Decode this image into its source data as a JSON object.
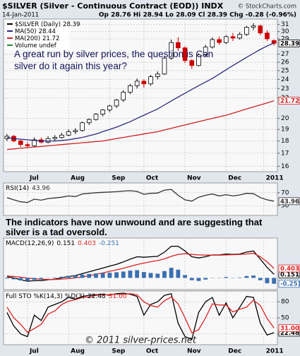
{
  "header": {
    "title": "$SILVER (Silver - Continuous Contract (EOD)) INDX",
    "source": "© StockCharts.com",
    "date": "14-Jan-2011",
    "quote": "Op 28.76 Hi 28.94 Lo 28.09 Cl 28.39 Chg -0.28 (-0.96%)"
  },
  "comment": "The indicators have now unwound and are suggesting that silver is a tad oversold.",
  "chart_data": [
    {
      "type": "candlestick",
      "name": "$SILVER (Daily)",
      "annotation": "A great run by silver prices, the question is Can silver do it again this year?",
      "volume_label": "Volume undef",
      "log": true,
      "grid": true,
      "up_color": "#000000",
      "down_color": "#cc0000",
      "axis_label": true,
      "ylim": [
        15.6,
        31.8
      ],
      "yticks": [
        16,
        17,
        18,
        19,
        20,
        22,
        23,
        24,
        25,
        26,
        27,
        29,
        30,
        31
      ],
      "xlim": [
        -0.5,
        39.5
      ],
      "xticks": [
        {
          "value": 3,
          "label": "Jul"
        },
        {
          "value": 9,
          "label": "Aug"
        },
        {
          "value": 15,
          "label": "Sep"
        },
        {
          "value": 20,
          "label": "Oct"
        },
        {
          "value": 26,
          "label": "Nov"
        },
        {
          "value": 32,
          "label": "Dec"
        },
        {
          "value": 37.5,
          "label": "2011"
        }
      ],
      "ohlc": [
        [
          18.2,
          18.6,
          18.0,
          18.4
        ],
        [
          18.4,
          18.5,
          17.9,
          18.0
        ],
        [
          18.0,
          18.1,
          17.5,
          17.7
        ],
        [
          17.7,
          17.9,
          17.4,
          17.6
        ],
        [
          17.6,
          18.3,
          17.5,
          18.1
        ],
        [
          18.1,
          18.3,
          17.8,
          17.9
        ],
        [
          17.9,
          18.4,
          17.8,
          18.2
        ],
        [
          18.2,
          18.5,
          18.0,
          18.3
        ],
        [
          18.3,
          18.7,
          18.2,
          18.5
        ],
        [
          18.5,
          19.0,
          18.4,
          18.8
        ],
        [
          18.8,
          19.1,
          18.6,
          18.9
        ],
        [
          18.9,
          19.7,
          18.8,
          19.6
        ],
        [
          19.6,
          20.0,
          19.4,
          19.9
        ],
        [
          19.9,
          20.5,
          19.8,
          20.4
        ],
        [
          20.4,
          20.9,
          20.2,
          20.8
        ],
        [
          20.8,
          21.3,
          20.6,
          21.2
        ],
        [
          21.2,
          21.9,
          21.0,
          21.8
        ],
        [
          21.8,
          22.8,
          21.6,
          22.6
        ],
        [
          22.6,
          23.5,
          22.4,
          23.3
        ],
        [
          23.3,
          24.1,
          23.0,
          23.8
        ],
        [
          23.8,
          24.0,
          23.1,
          23.5
        ],
        [
          23.5,
          24.5,
          23.3,
          24.3
        ],
        [
          24.3,
          24.9,
          24.0,
          24.6
        ],
        [
          24.6,
          26.8,
          24.5,
          26.5
        ],
        [
          26.5,
          28.9,
          26.3,
          28.5
        ],
        [
          28.5,
          29.2,
          27.4,
          27.8
        ],
        [
          27.8,
          28.0,
          25.9,
          26.2
        ],
        [
          26.2,
          26.4,
          25.2,
          25.6
        ],
        [
          25.6,
          27.1,
          25.5,
          26.9
        ],
        [
          26.9,
          28.2,
          26.7,
          27.9
        ],
        [
          27.9,
          29.2,
          27.7,
          28.9
        ],
        [
          28.9,
          29.3,
          28.2,
          28.5
        ],
        [
          28.5,
          29.5,
          28.3,
          29.3
        ],
        [
          29.3,
          29.8,
          28.7,
          29.1
        ],
        [
          29.1,
          29.9,
          28.9,
          29.6
        ],
        [
          29.6,
          30.8,
          29.4,
          30.6
        ],
        [
          30.6,
          31.2,
          30.2,
          30.8
        ],
        [
          30.8,
          31.0,
          29.5,
          29.8
        ],
        [
          29.8,
          30.2,
          28.7,
          29.0
        ],
        [
          28.76,
          28.94,
          28.09,
          28.39
        ]
      ],
      "series": [
        {
          "name": "MA(50)",
          "color": "#2a2a80",
          "values": [
            18.3,
            18.2,
            18.15,
            18.1,
            18.05,
            18.0,
            18.0,
            18.0,
            18.05,
            18.1,
            18.2,
            18.3,
            18.45,
            18.6,
            18.8,
            19.0,
            19.2,
            19.45,
            19.7,
            20.0,
            20.3,
            20.6,
            20.9,
            21.3,
            21.7,
            22.1,
            22.5,
            22.9,
            23.3,
            23.7,
            24.1,
            24.6,
            25.1,
            25.6,
            26.1,
            26.6,
            27.1,
            27.6,
            28.05,
            28.44
          ]
        },
        {
          "name": "MA(200)",
          "color": "#cc2222",
          "axis_label": true,
          "values": [
            17.3,
            17.35,
            17.4,
            17.45,
            17.5,
            17.55,
            17.6,
            17.65,
            17.7,
            17.75,
            17.8,
            17.85,
            17.9,
            17.95,
            18.0,
            18.1,
            18.2,
            18.3,
            18.4,
            18.5,
            18.6,
            18.7,
            18.8,
            18.95,
            19.1,
            19.25,
            19.4,
            19.55,
            19.7,
            19.85,
            20.0,
            20.15,
            20.3,
            20.5,
            20.7,
            20.9,
            21.1,
            21.3,
            21.5,
            21.72
          ]
        }
      ]
    },
    {
      "type": "line",
      "name": "RSI(14)",
      "grid": true,
      "ylim": [
        0,
        100
      ],
      "yticks": [
        30,
        70
      ],
      "xlim": [
        -0.5,
        39.5
      ],
      "series": [
        {
          "color": "#333333",
          "axis_label": true,
          "values": [
            55,
            48,
            42,
            40,
            50,
            47,
            52,
            54,
            56,
            60,
            58,
            66,
            68,
            70,
            71,
            72,
            73,
            75,
            76,
            74,
            65,
            68,
            69,
            78,
            80,
            62,
            48,
            44,
            56,
            62,
            66,
            60,
            64,
            60,
            63,
            68,
            67,
            55,
            48,
            43.96
          ]
        }
      ]
    },
    {
      "type": "line",
      "name": "MACD(12,26,9)",
      "grid": true,
      "ylim": [
        -0.5,
        1.7
      ],
      "xlim": [
        -0.5,
        39.5
      ],
      "series": [
        {
          "color": "#000000",
          "axis_label": true,
          "values": [
            0.05,
            0.0,
            -0.08,
            -0.14,
            -0.12,
            -0.12,
            -0.08,
            -0.05,
            0.0,
            0.06,
            0.1,
            0.18,
            0.26,
            0.34,
            0.42,
            0.5,
            0.58,
            0.68,
            0.8,
            0.9,
            0.88,
            0.9,
            0.92,
            1.1,
            1.35,
            1.35,
            1.15,
            0.9,
            0.85,
            0.9,
            0.98,
            0.98,
            1.02,
            1.0,
            1.02,
            1.1,
            1.15,
            0.8,
            0.45,
            0.151
          ]
        },
        {
          "color": "#dd2222",
          "axis_label": true,
          "values": [
            0.08,
            0.06,
            0.03,
            -0.01,
            -0.04,
            -0.06,
            -0.07,
            -0.07,
            -0.05,
            -0.03,
            0.0,
            0.04,
            0.09,
            0.15,
            0.21,
            0.28,
            0.34,
            0.41,
            0.49,
            0.57,
            0.63,
            0.69,
            0.74,
            0.81,
            0.92,
            1.0,
            1.03,
            1.0,
            0.98,
            0.97,
            0.97,
            0.97,
            0.98,
            0.99,
            1.0,
            1.02,
            1.05,
            0.9,
            0.68,
            0.403
          ]
        },
        {
          "color": "#3a6fb0",
          "style": "bar",
          "axis_label": true,
          "values": [
            -0.03,
            -0.06,
            -0.11,
            -0.13,
            -0.08,
            -0.06,
            -0.01,
            0.02,
            0.05,
            0.09,
            0.1,
            0.14,
            0.17,
            0.19,
            0.21,
            0.22,
            0.24,
            0.27,
            0.31,
            0.33,
            0.25,
            0.21,
            0.18,
            0.29,
            0.43,
            0.35,
            0.12,
            -0.1,
            -0.13,
            -0.07,
            0.01,
            0.01,
            0.04,
            0.01,
            0.02,
            0.08,
            0.1,
            -0.1,
            -0.23,
            -0.251
          ]
        }
      ]
    },
    {
      "type": "line",
      "name": "Full STO %K(14,3) %D(3)",
      "copyright": "© 2011 silver-prices.net",
      "grid": true,
      "ylim": [
        0,
        100
      ],
      "yticks": [
        20,
        50,
        80
      ],
      "xlim": [
        -0.5,
        39.5
      ],
      "xticks": [
        {
          "value": 3,
          "label": "Jul"
        },
        {
          "value": 9,
          "label": "Aug"
        },
        {
          "value": 15,
          "label": "Sep"
        },
        {
          "value": 20,
          "label": "Oct"
        },
        {
          "value": 26,
          "label": "Nov"
        },
        {
          "value": 32,
          "label": "Dec"
        },
        {
          "value": 37.5,
          "label": "2011"
        }
      ],
      "series": [
        {
          "color": "#000000",
          "axis_label": true,
          "values": [
            60,
            35,
            20,
            15,
            55,
            45,
            70,
            75,
            80,
            88,
            85,
            90,
            92,
            93,
            94,
            92,
            95,
            96,
            94,
            90,
            55,
            75,
            80,
            92,
            95,
            40,
            15,
            10,
            60,
            80,
            88,
            55,
            78,
            50,
            70,
            90,
            88,
            40,
            18,
            22.48
          ]
        },
        {
          "color": "#dd2222",
          "axis_label": true,
          "value_label": "31.00",
          "values": [
            70,
            50,
            38,
            23,
            30,
            38,
            57,
            63,
            75,
            81,
            84,
            88,
            89,
            92,
            93,
            93,
            94,
            94,
            95,
            93,
            80,
            73,
            70,
            82,
            89,
            76,
            50,
            22,
            28,
            50,
            76,
            74,
            74,
            61,
            66,
            70,
            83,
            73,
            49,
            31
          ]
        }
      ]
    }
  ]
}
